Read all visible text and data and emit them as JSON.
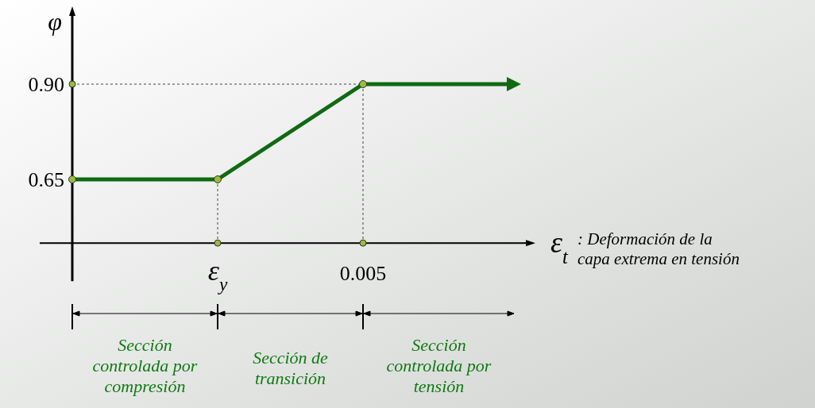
{
  "chart_data": {
    "type": "line",
    "ylabel": "φ",
    "xlabel": "ε$_{t}$",
    "categories": [
      null,
      "ε$_{y}$",
      "0.005",
      null
    ],
    "series": [
      {
        "color": "#0f6a12",
        "values": [
          0.65,
          0.65,
          0.9,
          0.9
        ]
      }
    ],
    "ylim": [
      0.483,
      1.1
    ],
    "yticks": [
      0.65,
      {
        "value": 0.9,
        "label": "0.90"
      }
    ],
    "marker": "circle",
    "grid": false,
    "annotations": [
      ": Deformación de la\ncapa extrema en tensión",
      "Sección\ncontrolada por\ncompresión",
      "Sección de\ntransición",
      "Sección\ncontrolada por\ntensión"
    ]
  }
}
